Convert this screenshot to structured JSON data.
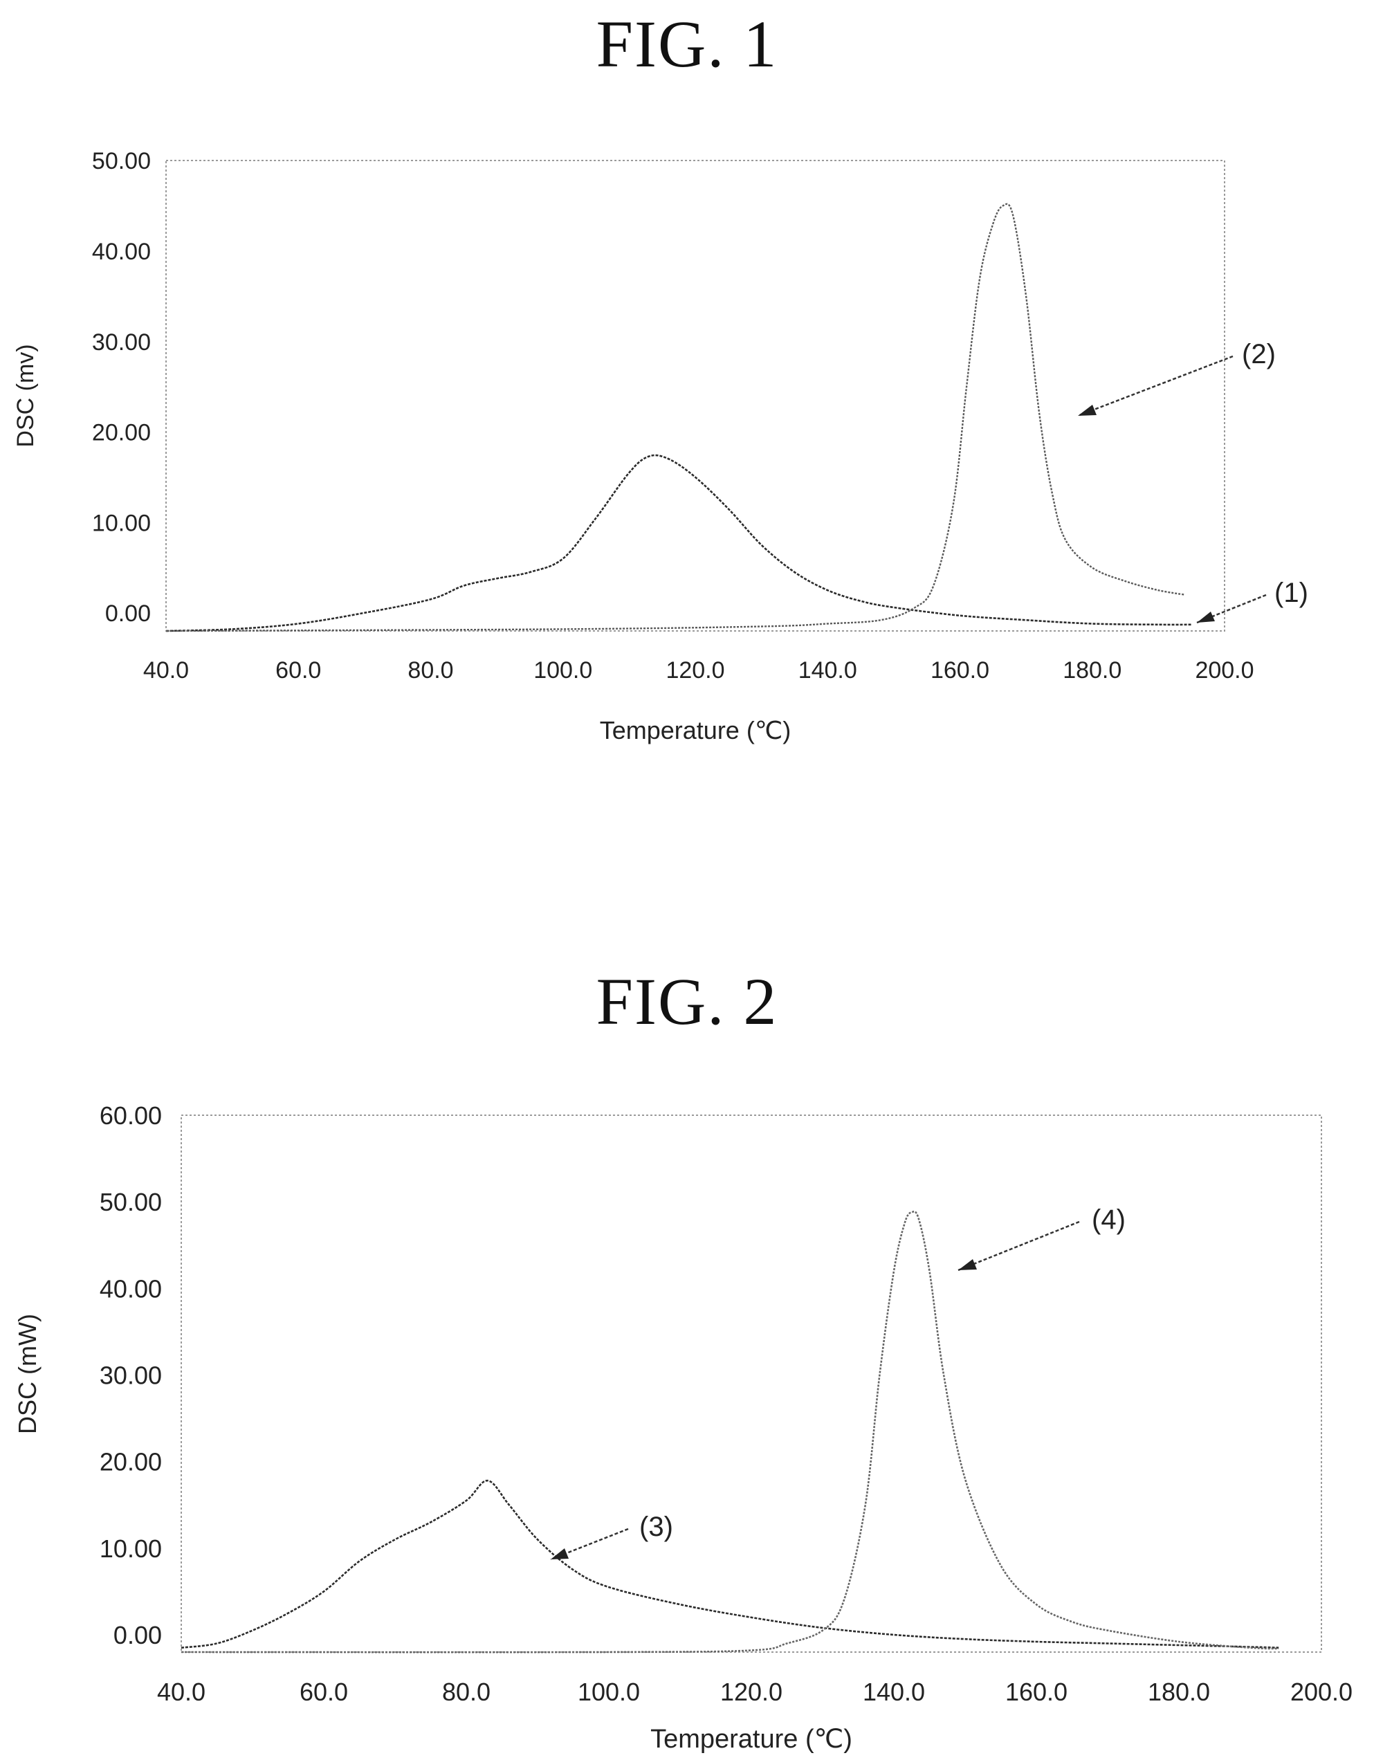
{
  "figures": [
    {
      "title": "FIG. 1"
    },
    {
      "title": "FIG. 2"
    }
  ],
  "chart_data": [
    {
      "type": "line",
      "title": "FIG. 1",
      "xlabel": "Temperature (℃)",
      "ylabel": "DSC (mv)",
      "xlim": [
        40.0,
        200.0
      ],
      "ylim": [
        -2.0,
        50.0
      ],
      "x_ticks": [
        "40.0",
        "60.0",
        "80.0",
        "100.0",
        "120.0",
        "140.0",
        "160.0",
        "180.0",
        "200.0"
      ],
      "y_ticks": [
        "0.00",
        "10.00",
        "20.00",
        "30.00",
        "40.00",
        "50.00"
      ],
      "grid": false,
      "series": [
        {
          "name": "(1)",
          "x": [
            40,
            50,
            60,
            70,
            80,
            85,
            90,
            95,
            100,
            105,
            110,
            113,
            116,
            120,
            125,
            130,
            135,
            140,
            145,
            150,
            160,
            170,
            180,
            190,
            195
          ],
          "y": [
            -2.0,
            -1.8,
            -1.2,
            0.0,
            1.5,
            3.0,
            3.8,
            4.5,
            6.0,
            10.5,
            15.5,
            17.3,
            17.0,
            15.0,
            11.5,
            7.5,
            4.5,
            2.5,
            1.3,
            0.6,
            -0.3,
            -0.8,
            -1.2,
            -1.3,
            -1.3
          ]
        },
        {
          "name": "(2)",
          "x": [
            40,
            100,
            130,
            140,
            148,
            153,
            156,
            159,
            161,
            163,
            165,
            166.5,
            168,
            170,
            172,
            174,
            176,
            180,
            185,
            190,
            194
          ],
          "y": [
            -2.0,
            -1.8,
            -1.5,
            -1.2,
            -0.8,
            0.5,
            3.0,
            12.0,
            25.0,
            37.0,
            43.0,
            45.0,
            44.0,
            35.0,
            22.0,
            13.0,
            8.0,
            5.0,
            3.5,
            2.5,
            2.0
          ]
        }
      ],
      "annotations": [
        {
          "text": "(2)",
          "series": "(2)"
        },
        {
          "text": "(1)",
          "series": "(1)"
        }
      ]
    },
    {
      "type": "line",
      "title": "FIG. 2",
      "xlabel": "Temperature (℃)",
      "ylabel": "DSC (mW)",
      "xlim": [
        40.0,
        200.0
      ],
      "ylim": [
        -2.0,
        60.0
      ],
      "x_ticks": [
        "40.0",
        "60.0",
        "80.0",
        "100.0",
        "120.0",
        "140.0",
        "160.0",
        "180.0",
        "200.0"
      ],
      "y_ticks": [
        "0.00",
        "10.00",
        "20.00",
        "30.00",
        "40.00",
        "50.00",
        "60.00"
      ],
      "grid": false,
      "series": [
        {
          "name": "(3)",
          "x": [
            40,
            45,
            50,
            55,
            60,
            65,
            70,
            75,
            80,
            83,
            86,
            90,
            95,
            100,
            110,
            120,
            130,
            140,
            150,
            160,
            170,
            180,
            190,
            194
          ],
          "y": [
            -1.5,
            -1.0,
            0.5,
            2.5,
            5.0,
            8.5,
            11.0,
            13.0,
            15.5,
            17.8,
            15.0,
            11.0,
            7.5,
            5.5,
            3.5,
            2.0,
            0.8,
            0.0,
            -0.5,
            -0.8,
            -1.0,
            -1.2,
            -1.4,
            -1.5
          ]
        },
        {
          "name": "(4)",
          "x": [
            40,
            100,
            120,
            125,
            130,
            133,
            136,
            138,
            140,
            141.5,
            142.5,
            143.5,
            145,
            147,
            150,
            155,
            160,
            165,
            170,
            180,
            190,
            194
          ],
          "y": [
            -2.0,
            -2.0,
            -1.8,
            -1.0,
            0.5,
            4.0,
            15.0,
            30.0,
            42.0,
            47.5,
            48.8,
            48.0,
            42.0,
            30.0,
            18.0,
            8.0,
            3.5,
            1.5,
            0.5,
            -0.8,
            -1.5,
            -1.6
          ]
        }
      ],
      "annotations": [
        {
          "text": "(4)",
          "series": "(4)"
        },
        {
          "text": "(3)",
          "series": "(3)"
        }
      ]
    }
  ]
}
